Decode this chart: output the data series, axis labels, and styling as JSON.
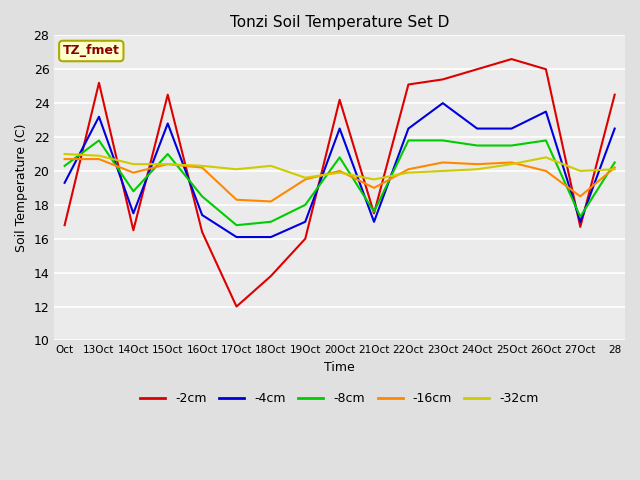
{
  "title": "Tonzi Soil Temperature Set D",
  "xlabel": "Time",
  "ylabel": "Soil Temperature (C)",
  "annotation_label": "TZ_fmet",
  "ylim": [
    10,
    28
  ],
  "xtick_labels": [
    "Oct",
    "13Oct",
    "14Oct",
    "15Oct",
    "16Oct",
    "17Oct",
    "18Oct",
    "19Oct",
    "20Oct",
    "21Oct",
    "22Oct",
    "23Oct",
    "24Oct",
    "25Oct",
    "26Oct",
    "27Oct",
    "28"
  ],
  "series": {
    "-2cm": {
      "color": "#dd0000",
      "data": [
        16.8,
        25.2,
        16.5,
        24.5,
        16.4,
        12.0,
        13.8,
        16.0,
        24.2,
        17.5,
        25.1,
        25.4,
        26.0,
        26.6,
        26.0,
        16.7,
        24.5
      ]
    },
    "-4cm": {
      "color": "#0000dd",
      "data": [
        19.3,
        23.2,
        17.5,
        22.8,
        17.4,
        16.1,
        16.1,
        17.0,
        22.5,
        17.0,
        22.5,
        24.0,
        22.5,
        22.5,
        23.5,
        17.0,
        22.5
      ]
    },
    "-8cm": {
      "color": "#00cc00",
      "data": [
        20.3,
        21.8,
        18.8,
        21.0,
        18.5,
        16.8,
        17.0,
        18.0,
        20.8,
        17.6,
        21.8,
        21.8,
        21.5,
        21.5,
        21.8,
        17.3,
        20.5
      ]
    },
    "-16cm": {
      "color": "#ff8800",
      "data": [
        20.7,
        20.7,
        19.9,
        20.4,
        20.2,
        18.3,
        18.2,
        19.5,
        20.0,
        19.0,
        20.1,
        20.5,
        20.4,
        20.5,
        20.0,
        18.5,
        20.2
      ]
    },
    "-32cm": {
      "color": "#cccc00",
      "data": [
        21.0,
        20.9,
        20.4,
        20.4,
        20.3,
        20.1,
        20.3,
        19.6,
        19.9,
        19.5,
        19.9,
        20.0,
        20.1,
        20.4,
        20.8,
        20.0,
        20.1
      ]
    }
  },
  "bg_color": "#e0e0e0",
  "plot_bg": "#ebebeb"
}
